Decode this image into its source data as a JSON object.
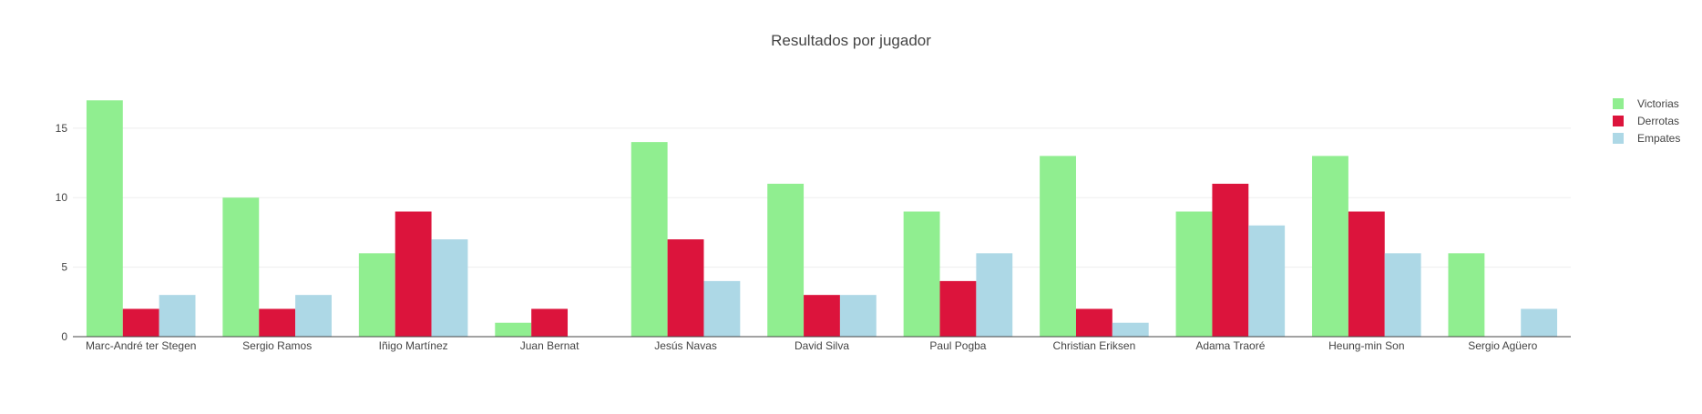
{
  "chart_data": {
    "type": "bar",
    "title": "Resultados por jugador",
    "xlabel": "",
    "ylabel": "",
    "categories": [
      "Marc-André ter Stegen",
      "Sergio Ramos",
      "Iñigo Martínez",
      "Juan Bernat",
      "Jesús Navas",
      "David Silva",
      "Paul Pogba",
      "Christian Eriksen",
      "Adama Traoré",
      "Heung-min Son",
      "Sergio Agüero"
    ],
    "series": [
      {
        "name": "Victorias",
        "color": "#90ee90",
        "values": [
          17,
          10,
          6,
          1,
          14,
          11,
          9,
          13,
          9,
          13,
          6
        ]
      },
      {
        "name": "Derrotas",
        "color": "#dc143c",
        "values": [
          2,
          2,
          9,
          2,
          7,
          3,
          4,
          2,
          11,
          9,
          0
        ]
      },
      {
        "name": "Empates",
        "color": "#add8e6",
        "values": [
          3,
          3,
          7,
          0,
          4,
          3,
          6,
          1,
          8,
          6,
          2
        ]
      }
    ],
    "ylim": [
      0,
      18
    ],
    "yticks": [
      0,
      5,
      10,
      15
    ],
    "grid": true,
    "legend_position": "top-right"
  }
}
